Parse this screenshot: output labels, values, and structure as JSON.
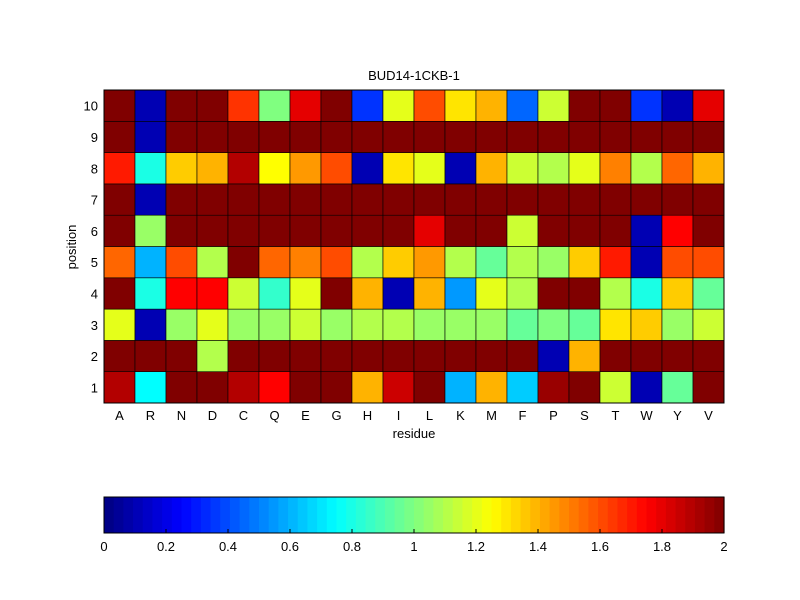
{
  "chart_data": {
    "type": "heatmap",
    "title": "BUD14-1CKB-1",
    "xlabel": "residue",
    "ylabel": "position",
    "x_categories": [
      "A",
      "R",
      "N",
      "D",
      "C",
      "Q",
      "E",
      "G",
      "H",
      "I",
      "L",
      "K",
      "M",
      "F",
      "P",
      "S",
      "T",
      "W",
      "Y",
      "V"
    ],
    "y_categories": [
      "1",
      "2",
      "3",
      "4",
      "5",
      "6",
      "7",
      "8",
      "9",
      "10"
    ],
    "colormap": "jet",
    "clim": [
      0,
      2
    ],
    "colorbar_ticks": [
      "0",
      "0.2",
      "0.4",
      "0.6",
      "0.8",
      "1",
      "1.2",
      "1.4",
      "1.6",
      "1.8",
      "2"
    ],
    "colorbar_location": "bottom",
    "grid": true,
    "values": [
      [
        1.9,
        0.75,
        2,
        2,
        1.9,
        1.75,
        2,
        2,
        1.4,
        1.85,
        2,
        0.6,
        1.4,
        0.65,
        1.95,
        2,
        1.15,
        0.1,
        0.95,
        2
      ],
      [
        2,
        2,
        2,
        1.1,
        2,
        2,
        2,
        2,
        2,
        2,
        2,
        2,
        2,
        2,
        0.1,
        1.4,
        2,
        2,
        2,
        2
      ],
      [
        1.2,
        0.1,
        1.05,
        1.2,
        1.05,
        1.05,
        1.15,
        1.05,
        1.1,
        1.1,
        1.05,
        1.05,
        1.05,
        0.95,
        1.0,
        0.95,
        1.3,
        1.35,
        1.05,
        1.15
      ],
      [
        2,
        0.8,
        1.75,
        1.75,
        1.15,
        0.85,
        1.2,
        2,
        1.4,
        0.1,
        1.4,
        0.55,
        1.2,
        1.1,
        2,
        2,
        1.1,
        0.8,
        1.35,
        0.95
      ],
      [
        1.55,
        0.6,
        1.6,
        1.1,
        2,
        1.55,
        1.5,
        1.6,
        1.1,
        1.35,
        1.45,
        1.1,
        0.95,
        1.1,
        1.05,
        1.35,
        1.7,
        0.1,
        1.6,
        1.6
      ],
      [
        2,
        1.05,
        2,
        2,
        2,
        2,
        2,
        2,
        2,
        2,
        1.8,
        2,
        2,
        1.15,
        2,
        2,
        2,
        0.1,
        1.75,
        2
      ],
      [
        2,
        0.1,
        2,
        2,
        2,
        2,
        2,
        2,
        2,
        2,
        2,
        2,
        2,
        2,
        2,
        2,
        2,
        2,
        2,
        2
      ],
      [
        1.7,
        0.8,
        1.35,
        1.4,
        1.9,
        1.25,
        1.45,
        1.6,
        0.1,
        1.3,
        1.2,
        0.1,
        1.4,
        1.15,
        1.1,
        1.2,
        1.5,
        1.1,
        1.55,
        1.4
      ],
      [
        2,
        0.1,
        2,
        2,
        2,
        2,
        2,
        2,
        2,
        2,
        2,
        2,
        2,
        2,
        2,
        2,
        2,
        2,
        2,
        2
      ],
      [
        2,
        0.1,
        2,
        2,
        1.65,
        1.0,
        1.8,
        2,
        0.35,
        1.2,
        1.6,
        1.3,
        1.4,
        0.45,
        1.15,
        2,
        2,
        0.35,
        0.1,
        1.8
      ]
    ]
  }
}
